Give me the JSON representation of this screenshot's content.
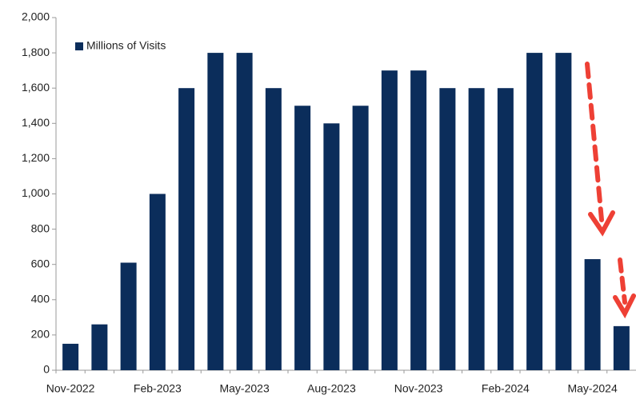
{
  "chart_data": {
    "type": "bar",
    "categories": [
      "Nov-2022",
      null,
      null,
      "Feb-2023",
      null,
      null,
      "May-2023",
      null,
      null,
      "Aug-2023",
      null,
      null,
      "Nov-2023",
      null,
      null,
      "Feb-2024",
      null,
      null,
      "May-2024",
      null
    ],
    "series": [
      {
        "name": "Millions of Visits",
        "color": "#0b2d5b",
        "values": [
          150,
          260,
          610,
          1000,
          1600,
          1800,
          1800,
          1600,
          1500,
          1400,
          1500,
          1700,
          1700,
          1600,
          1600,
          1600,
          1800,
          1800,
          630,
          250
        ]
      }
    ],
    "ylim": [
      0,
      2000
    ],
    "yticks": [
      0,
      200,
      400,
      600,
      800,
      {
        "value": 1000,
        "label": "1,000"
      },
      {
        "value": 1200,
        "label": "1,200"
      },
      {
        "value": 1400,
        "label": "1,400"
      },
      {
        "value": 1600,
        "label": "1,600"
      },
      {
        "value": 1800,
        "label": "1,800"
      },
      {
        "value": 2000,
        "label": "2,000"
      }
    ],
    "legend": "top-left"
  }
}
